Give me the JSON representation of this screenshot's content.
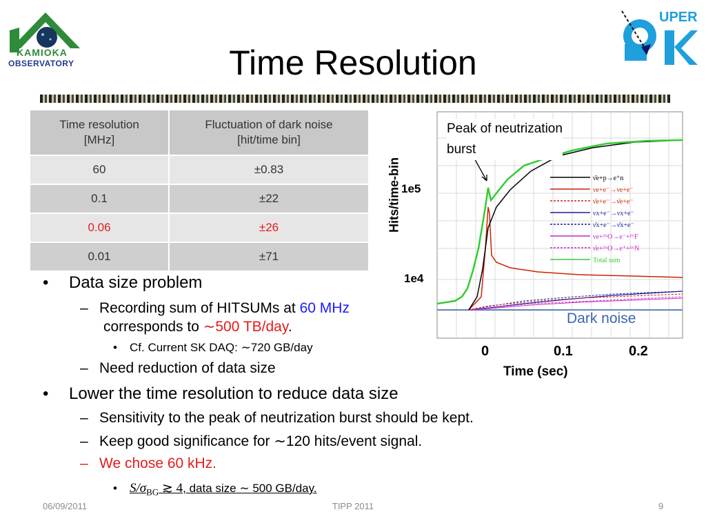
{
  "slide": {
    "title": "Time Resolution",
    "logo_left": {
      "line1": "KAMIOKA",
      "line2": "OBSERVATORY"
    },
    "logo_right": {
      "text": "UPER SK"
    }
  },
  "table": {
    "headers": [
      "Time resolution [MHz]",
      "Fluctuation of dark noise [hit/time bin]"
    ],
    "header_lines": [
      [
        "Time resolution",
        "[MHz]"
      ],
      [
        "Fluctuation of dark noise",
        "[hit/time bin]"
      ]
    ],
    "rows": [
      {
        "resolution": "60",
        "fluctuation": "±0.83",
        "highlight": false
      },
      {
        "resolution": "0.1",
        "fluctuation": "±22",
        "highlight": false
      },
      {
        "resolution": "0.06",
        "fluctuation": "±26",
        "highlight": true
      },
      {
        "resolution": "0.01",
        "fluctuation": "±71",
        "highlight": false
      }
    ]
  },
  "bullets": {
    "b1": "Data size problem",
    "b1_1_pre": "Recording sum of HITSUMs at ",
    "b1_1_hl": "60 MHz",
    "b1_1_cont": "corresponds to ",
    "b1_1_hl2": "∼500 TB/day",
    "b1_1_end": ".",
    "b1_1_1": "Cf. Current SK DAQ: ∼720 GB/day",
    "b1_2": "Need reduction of data size",
    "b2": "Lower the time resolution to reduce data size",
    "b2_1": "Sensitivity to the peak of neutrization burst should be kept.",
    "b2_2": "Keep good significance for ∼120 hits/event signal.",
    "b2_3": "We chose 60 kHz.",
    "b2_3_1_math": "S/σ",
    "b2_3_1_sub": "BG",
    "b2_3_1_rel": " ≳ 4",
    "b2_3_1_text": ", data size ∼ 500 GB/day.",
    "bullet_glyph": "•",
    "dash_glyph": "–"
  },
  "plot": {
    "annotation_lines": [
      "Peak of neutrization",
      "burst"
    ],
    "ylabel": "Hits/time-bin",
    "xlabel": "Time (sec)",
    "ytick_labels": [
      "1e5",
      "1e4"
    ],
    "xtick_labels": [
      "0",
      "0.1",
      "0.2"
    ],
    "dark_noise_label": "Dark noise",
    "legend": [
      {
        "label": "ν̄e+p→e⁺n",
        "color": "#000000",
        "style": "solid"
      },
      {
        "label": "νe+e⁻→νe+e⁻",
        "color": "#cc2200",
        "style": "solid"
      },
      {
        "label": "ν̄e+e⁻→ν̄e+e⁻",
        "color": "#cc2200",
        "style": "dashed"
      },
      {
        "label": "νx+e⁻→νx+e⁻",
        "color": "#1a1aa0",
        "style": "solid"
      },
      {
        "label": "ν̄x+e⁻→ν̄x+e⁻",
        "color": "#1a1aa0",
        "style": "dashed"
      },
      {
        "label": "νe+¹⁶O→e⁻+¹⁶F",
        "color": "#cc22cc",
        "style": "solid"
      },
      {
        "label": "ν̄e+¹⁶O→e⁺+¹⁶N",
        "color": "#cc22cc",
        "style": "dashed"
      },
      {
        "label": "Total sum",
        "color": "#33cc33",
        "style": "solid"
      }
    ]
  },
  "footer": {
    "date": "06/09/2011",
    "center": "TIPP 2011",
    "page": "9"
  },
  "colors": {
    "accent_red": "#e21b1b",
    "accent_blue": "#1a1aff",
    "dark_noise_blue": "#3a64b0",
    "total_green": "#33cc33"
  }
}
